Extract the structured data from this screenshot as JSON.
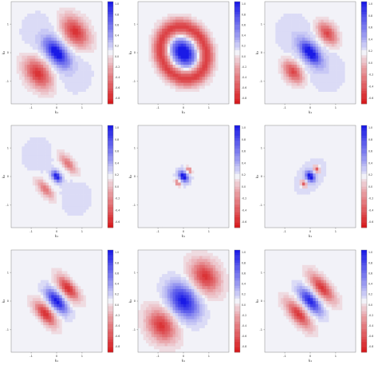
{
  "figure": {
    "xlabel": "k₁",
    "ylabel": "k₂",
    "x_ticks": [
      "-1",
      "0",
      "1"
    ],
    "y_ticks": [
      "-1",
      "0",
      "1"
    ],
    "colormap": {
      "negative": "#d7191c",
      "zero": "#f2f2f8",
      "positive": "#1a1ae6"
    }
  },
  "chart_data": [
    {
      "type": "heatmap",
      "lobes": [
        {
          "cx": 0,
          "cy": 0,
          "sx": 0.35,
          "sy": 0.17,
          "rot": -45,
          "amp": 1.0
        },
        {
          "cx": 0.65,
          "cy": 0.65,
          "sx": 0.38,
          "sy": 0.25,
          "rot": -45,
          "amp": -0.9
        },
        {
          "cx": -0.65,
          "cy": -0.65,
          "sx": 0.38,
          "sy": 0.25,
          "rot": -45,
          "amp": -0.9
        },
        {
          "cx": 0,
          "cy": 0,
          "sx": 1.0,
          "sy": 0.6,
          "rot": -45,
          "amp": 0.12
        }
      ],
      "colorbar_ticks": [
        "-0.8",
        "-0.6",
        "-0.4",
        "-0.2",
        "0.0",
        "0.2",
        "0.4",
        "0.6",
        "0.8",
        "1.0"
      ]
    },
    {
      "type": "heatmap",
      "lobes": [
        {
          "cx": 0,
          "cy": 0,
          "sx": 0.28,
          "sy": 0.2,
          "rot": -45,
          "amp": 1.0
        },
        {
          "cx": 0,
          "cy": 0,
          "sx": 1.15,
          "sy": 1.0,
          "rot": -45,
          "amp": -0.85,
          "ring": 0.75
        },
        {
          "cx": 0,
          "cy": 0,
          "sx": 0.55,
          "sy": 0.45,
          "rot": -45,
          "amp": 0.25
        }
      ],
      "colorbar_ticks": [
        "-0.8",
        "-0.6",
        "-0.4",
        "-0.2",
        "0.0",
        "0.2",
        "0.4",
        "0.6",
        "0.8",
        "1.0"
      ]
    },
    {
      "type": "heatmap",
      "lobes": [
        {
          "cx": 0,
          "cy": 0,
          "sx": 0.3,
          "sy": 0.15,
          "rot": -45,
          "amp": 1.0
        },
        {
          "cx": 0.6,
          "cy": 0.6,
          "sx": 0.28,
          "sy": 0.18,
          "rot": -45,
          "amp": -0.8
        },
        {
          "cx": -0.6,
          "cy": -0.6,
          "sx": 0.28,
          "sy": 0.18,
          "rot": -45,
          "amp": -0.8
        },
        {
          "cx": 0,
          "cy": 0,
          "sx": 0.9,
          "sy": 0.5,
          "rot": -45,
          "amp": 0.15
        }
      ],
      "colorbar_ticks": [
        "-0.6",
        "-0.4",
        "-0.2",
        "0.0",
        "0.2",
        "0.4",
        "0.6",
        "0.8",
        "1.0"
      ]
    },
    {
      "type": "heatmap",
      "lobes": [
        {
          "cx": 0,
          "cy": 0,
          "sx": 0.14,
          "sy": 0.09,
          "rot": -45,
          "amp": 1.0
        },
        {
          "cx": 0.4,
          "cy": 0.4,
          "sx": 0.25,
          "sy": 0.1,
          "rot": -45,
          "amp": -0.55
        },
        {
          "cx": -0.4,
          "cy": -0.4,
          "sx": 0.25,
          "sy": 0.1,
          "rot": -45,
          "amp": -0.55
        },
        {
          "cx": -0.6,
          "cy": 0.6,
          "sx": 0.55,
          "sy": 0.55,
          "rot": 0,
          "amp": 0.12
        },
        {
          "cx": 0.6,
          "cy": -0.6,
          "sx": 0.55,
          "sy": 0.55,
          "rot": 0,
          "amp": 0.12
        },
        {
          "cx": 0,
          "cy": 0,
          "sx": 1.1,
          "sy": 0.9,
          "rot": -45,
          "amp": -0.06
        }
      ],
      "colorbar_ticks": [
        "-0.6",
        "-0.4",
        "-0.2",
        "0.0",
        "0.2",
        "0.4",
        "0.6",
        "0.8",
        "1.0"
      ]
    },
    {
      "type": "heatmap",
      "lobes": [
        {
          "cx": 0,
          "cy": 0,
          "sx": 0.12,
          "sy": 0.08,
          "rot": -45,
          "amp": 1.0
        },
        {
          "cx": 0.2,
          "cy": 0.2,
          "sx": 0.08,
          "sy": 0.05,
          "rot": -45,
          "amp": -0.7
        },
        {
          "cx": -0.2,
          "cy": -0.2,
          "sx": 0.08,
          "sy": 0.05,
          "rot": -45,
          "amp": -0.7
        },
        {
          "cx": 0,
          "cy": 0,
          "sx": 0.3,
          "sy": 0.2,
          "rot": 45,
          "amp": 0.12
        }
      ],
      "colorbar_ticks": [
        "-0.6",
        "-0.4",
        "-0.2",
        "0.0",
        "0.2",
        "0.4",
        "0.6",
        "0.8",
        "1.0"
      ]
    },
    {
      "type": "heatmap",
      "lobes": [
        {
          "cx": 0,
          "cy": 0,
          "sx": 0.12,
          "sy": 0.08,
          "rot": -45,
          "amp": 1.0
        },
        {
          "cx": 0.23,
          "cy": 0.23,
          "sx": 0.09,
          "sy": 0.06,
          "rot": -45,
          "amp": -0.75
        },
        {
          "cx": -0.23,
          "cy": -0.23,
          "sx": 0.09,
          "sy": 0.06,
          "rot": -45,
          "amp": -0.75
        },
        {
          "cx": 0,
          "cy": 0,
          "sx": 0.4,
          "sy": 0.25,
          "rot": 45,
          "amp": 0.15
        }
      ],
      "colorbar_ticks": [
        "-0.6",
        "-0.4",
        "-0.2",
        "0.0",
        "0.2",
        "0.4",
        "0.6",
        "0.8",
        "1.0"
      ]
    },
    {
      "type": "heatmap",
      "lobes": [
        {
          "cx": 0,
          "cy": 0,
          "sx": 0.32,
          "sy": 0.14,
          "rot": -45,
          "amp": 1.0
        },
        {
          "cx": 0.4,
          "cy": 0.4,
          "sx": 0.32,
          "sy": 0.14,
          "rot": -45,
          "amp": -0.9
        },
        {
          "cx": -0.4,
          "cy": -0.4,
          "sx": 0.32,
          "sy": 0.14,
          "rot": -45,
          "amp": -0.9
        }
      ],
      "colorbar_ticks": [
        "-0.8",
        "-0.6",
        "-0.4",
        "-0.2",
        "0.0",
        "0.2",
        "0.4",
        "0.6",
        "0.8",
        "1.0"
      ]
    },
    {
      "type": "heatmap",
      "lobes": [
        {
          "cx": 0,
          "cy": 0,
          "sx": 0.42,
          "sy": 0.28,
          "rot": -45,
          "amp": 1.0
        },
        {
          "cx": 0.78,
          "cy": 0.78,
          "sx": 0.38,
          "sy": 0.28,
          "rot": -45,
          "amp": -0.85
        },
        {
          "cx": -0.78,
          "cy": -0.78,
          "sx": 0.38,
          "sy": 0.28,
          "rot": -45,
          "amp": -0.85
        }
      ],
      "colorbar_ticks": [
        "-0.8",
        "-0.6",
        "-0.4",
        "-0.2",
        "0.0",
        "0.2",
        "0.4",
        "0.6",
        "0.8",
        "1.0"
      ]
    },
    {
      "type": "heatmap",
      "lobes": [
        {
          "cx": 0,
          "cy": 0,
          "sx": 0.35,
          "sy": 0.14,
          "rot": -45,
          "amp": 0.95
        },
        {
          "cx": 0.42,
          "cy": 0.42,
          "sx": 0.38,
          "sy": 0.15,
          "rot": -45,
          "amp": -0.85
        },
        {
          "cx": -0.42,
          "cy": -0.42,
          "sx": 0.38,
          "sy": 0.15,
          "rot": -45,
          "amp": -0.85
        }
      ],
      "colorbar_ticks": [
        "-0.8",
        "-0.6",
        "-0.4",
        "-0.2",
        "0.0",
        "0.2",
        "0.4",
        "0.6",
        "0.8",
        "1.0"
      ]
    }
  ]
}
